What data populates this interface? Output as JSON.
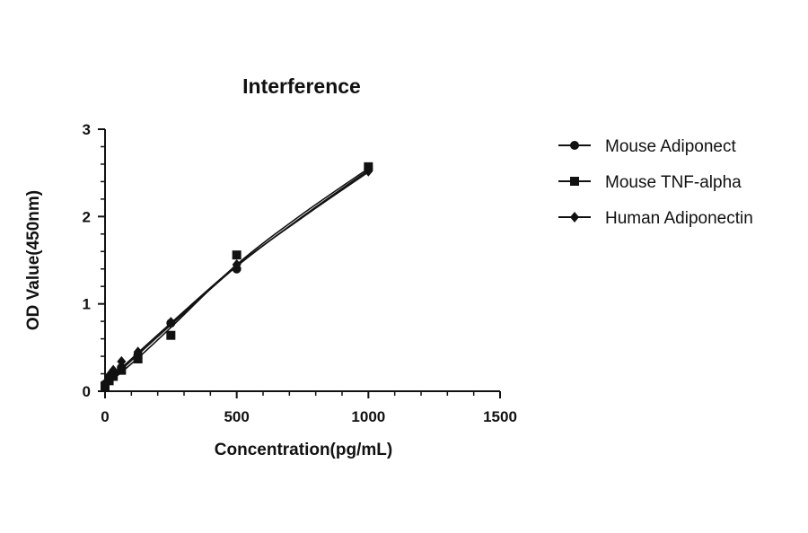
{
  "chart_data": {
    "type": "scatter",
    "title": "Interference",
    "xlabel": "Concentration(pg/mL)",
    "ylabel": "OD Value(450nm)",
    "xlim": [
      0,
      1500
    ],
    "ylim": [
      0,
      3
    ],
    "xticks": [
      0,
      500,
      1000,
      1500
    ],
    "yticks": [
      0,
      1,
      2,
      3
    ],
    "xtick_labels": [
      "0",
      "500",
      "1000",
      "1500"
    ],
    "ytick_labels": [
      "0",
      "1",
      "2",
      "3"
    ],
    "grid": false,
    "legend_position": "right",
    "series": [
      {
        "name": "Mouse Adiponect",
        "marker": "circle",
        "x": [
          0,
          15.6,
          31.25,
          62.5,
          125,
          250,
          500,
          1000
        ],
        "y": [
          0.08,
          0.15,
          0.2,
          0.27,
          0.42,
          0.78,
          1.4,
          2.55
        ],
        "fit": [
          [
            0,
            0.08
          ],
          [
            125,
            0.42
          ],
          [
            250,
            0.76
          ],
          [
            500,
            1.43
          ],
          [
            750,
            2.0
          ],
          [
            1000,
            2.53
          ]
        ]
      },
      {
        "name": "Mouse TNF-alpha",
        "marker": "square",
        "x": [
          0,
          15.6,
          31.25,
          62.5,
          125,
          250,
          500,
          1000
        ],
        "y": [
          0.06,
          0.12,
          0.17,
          0.24,
          0.37,
          0.64,
          1.56,
          2.57
        ],
        "fit": [
          [
            0,
            0.06
          ],
          [
            125,
            0.38
          ],
          [
            250,
            0.73
          ],
          [
            500,
            1.45
          ],
          [
            750,
            2.03
          ],
          [
            1000,
            2.55
          ]
        ]
      },
      {
        "name": "Human Adiponectin",
        "marker": "diamond",
        "x": [
          0,
          15.6,
          31.25,
          62.5,
          125,
          250,
          500,
          1000
        ],
        "y": [
          0.09,
          0.18,
          0.24,
          0.34,
          0.45,
          0.79,
          1.45,
          2.52
        ],
        "fit": [
          [
            0,
            0.09
          ],
          [
            125,
            0.44
          ],
          [
            250,
            0.78
          ],
          [
            500,
            1.44
          ],
          [
            750,
            1.99
          ],
          [
            1000,
            2.51
          ]
        ]
      }
    ]
  }
}
